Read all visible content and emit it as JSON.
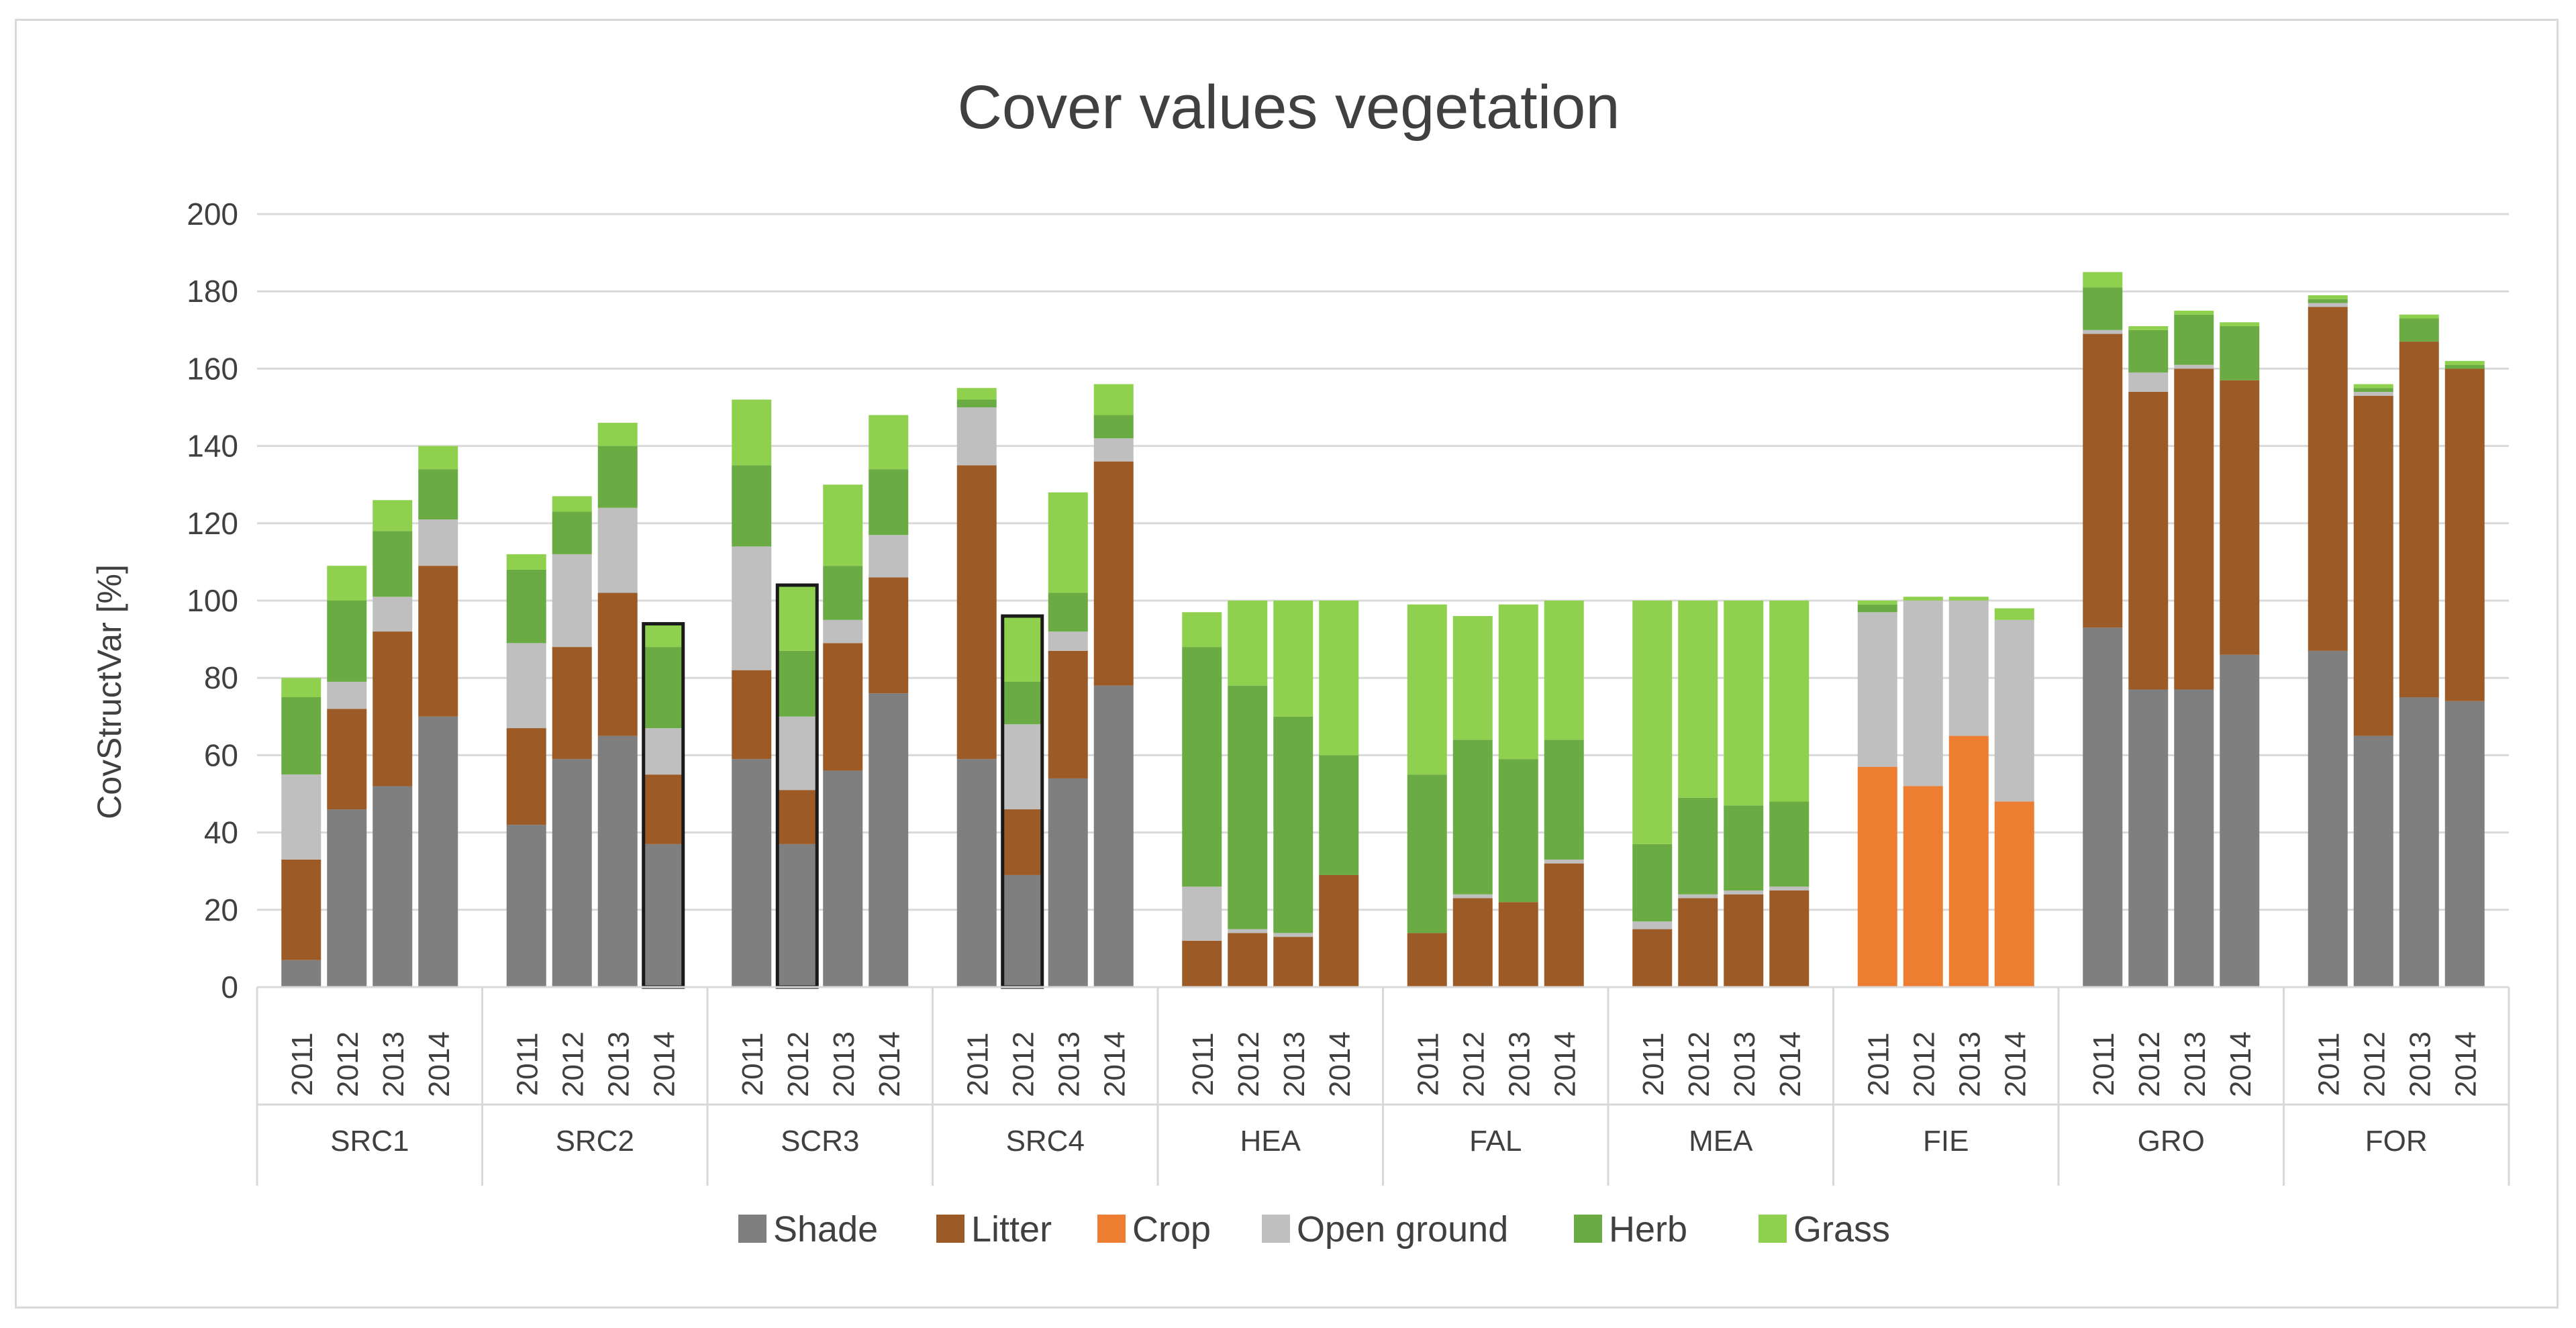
{
  "chart_data": {
    "type": "bar",
    "stacked": true,
    "title": "Cover values vegetation",
    "xlabel": "",
    "ylabel": "CovStructVar [%]",
    "ylim": [
      0,
      200
    ],
    "yticks": [
      0,
      20,
      40,
      60,
      80,
      100,
      120,
      140,
      160,
      180,
      200
    ],
    "grid": true,
    "legend_position": "bottom",
    "groups": [
      "SRC1",
      "SRC2",
      "SCR3",
      "SRC4",
      "HEA",
      "FAL",
      "MEA",
      "FIE",
      "GRO",
      "FOR"
    ],
    "years": [
      "2011",
      "2012",
      "2013",
      "2014"
    ],
    "series": [
      {
        "name": "Shade",
        "color": "#7f7f7f",
        "values": [
          [
            7,
            46,
            52,
            70
          ],
          [
            42,
            59,
            65,
            37
          ],
          [
            59,
            37,
            56,
            76
          ],
          [
            59,
            29,
            54,
            78
          ],
          [
            0,
            0,
            0,
            0
          ],
          [
            0,
            0,
            0,
            0
          ],
          [
            0,
            0,
            0,
            0
          ],
          [
            0,
            0,
            0,
            0
          ],
          [
            93,
            77,
            77,
            86
          ],
          [
            87,
            65,
            75,
            74
          ]
        ]
      },
      {
        "name": "Litter",
        "color": "#9c5b26",
        "values": [
          [
            26,
            26,
            40,
            39
          ],
          [
            25,
            29,
            37,
            18
          ],
          [
            23,
            14,
            33,
            30
          ],
          [
            76,
            17,
            33,
            58
          ],
          [
            12,
            14,
            13,
            29
          ],
          [
            14,
            23,
            22,
            32
          ],
          [
            15,
            23,
            24,
            25
          ],
          [
            0,
            0,
            0,
            0
          ],
          [
            76,
            77,
            83,
            71
          ],
          [
            89,
            88,
            92,
            86
          ]
        ]
      },
      {
        "name": "Crop",
        "color": "#ed7d31",
        "values": [
          [
            0,
            0,
            0,
            0
          ],
          [
            0,
            0,
            0,
            0
          ],
          [
            0,
            0,
            0,
            0
          ],
          [
            0,
            0,
            0,
            0
          ],
          [
            0,
            0,
            0,
            0
          ],
          [
            0,
            0,
            0,
            0
          ],
          [
            0,
            0,
            0,
            0
          ],
          [
            57,
            52,
            65,
            48
          ],
          [
            0,
            0,
            0,
            0
          ],
          [
            0,
            0,
            0,
            0
          ]
        ]
      },
      {
        "name": "Open ground",
        "color": "#bfbfbf",
        "values": [
          [
            22,
            7,
            9,
            12
          ],
          [
            22,
            24,
            22,
            12
          ],
          [
            32,
            19,
            6,
            11
          ],
          [
            15,
            22,
            5,
            6
          ],
          [
            14,
            1,
            1,
            0
          ],
          [
            0,
            1,
            0,
            1
          ],
          [
            2,
            1,
            1,
            1
          ],
          [
            40,
            48,
            35,
            47
          ],
          [
            1,
            5,
            1,
            0
          ],
          [
            1,
            1,
            0,
            0
          ]
        ]
      },
      {
        "name": "Herb",
        "color": "#6aab43",
        "values": [
          [
            20,
            21,
            17,
            13
          ],
          [
            19,
            11,
            16,
            21
          ],
          [
            21,
            17,
            14,
            17
          ],
          [
            2,
            11,
            10,
            6
          ],
          [
            62,
            63,
            56,
            31
          ],
          [
            41,
            40,
            37,
            31
          ],
          [
            20,
            25,
            22,
            22
          ],
          [
            2,
            0,
            0,
            0
          ],
          [
            11,
            11,
            13,
            14
          ],
          [
            1,
            1,
            6,
            1
          ]
        ]
      },
      {
        "name": "Grass",
        "color": "#8fd14f",
        "values": [
          [
            5,
            9,
            8,
            6
          ],
          [
            4,
            4,
            6,
            6
          ],
          [
            17,
            17,
            21,
            14
          ],
          [
            3,
            17,
            26,
            8
          ],
          [
            9,
            22,
            30,
            40
          ],
          [
            44,
            32,
            40,
            36
          ],
          [
            63,
            51,
            53,
            52
          ],
          [
            1,
            1,
            1,
            3
          ],
          [
            4,
            1,
            1,
            1
          ],
          [
            1,
            1,
            1,
            1
          ]
        ]
      }
    ],
    "highlighted_bars": [
      {
        "group": "SRC2",
        "year": "2014"
      },
      {
        "group": "SCR3",
        "year": "2012"
      },
      {
        "group": "SRC4",
        "year": "2012"
      }
    ]
  }
}
